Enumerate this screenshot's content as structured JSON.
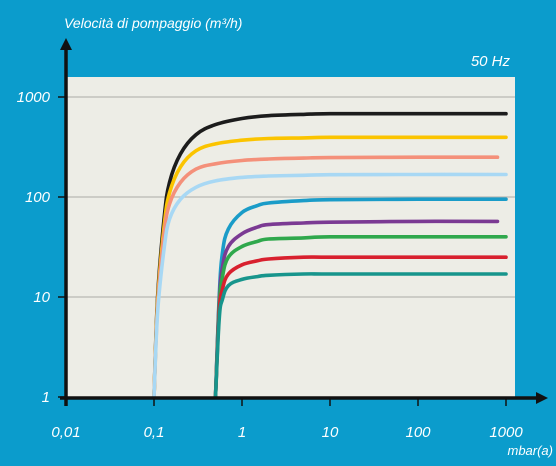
{
  "chart_data": {
    "type": "line",
    "title": "50 Hz",
    "ylabel": "Velocità di pompaggio (m³/h)",
    "xlabel": "mbar(a)",
    "x_scale": "log",
    "y_scale": "log",
    "xlim": [
      0.004,
      1000
    ],
    "ylim": [
      1,
      1500
    ],
    "x_ticks": [
      "0,01",
      "0,1",
      "1",
      "10",
      "100",
      "1000"
    ],
    "x_tick_values": [
      0.01,
      0.1,
      1,
      10,
      100,
      1000
    ],
    "y_ticks": [
      "1",
      "10",
      "100",
      "1000"
    ],
    "y_tick_values": [
      1,
      10,
      100,
      1000
    ],
    "grid": "horizontal",
    "plot_background": "#edede6",
    "series": [
      {
        "color": "#1c1c1c",
        "x": [
          0.1,
          0.11,
          0.13,
          0.15,
          0.2,
          0.3,
          0.5,
          1,
          2,
          5,
          10,
          100,
          1000
        ],
        "y": [
          1,
          10,
          60,
          140,
          270,
          420,
          530,
          610,
          650,
          670,
          680,
          680,
          680
        ]
      },
      {
        "color": "#fbc400",
        "x": [
          0.1,
          0.11,
          0.13,
          0.15,
          0.2,
          0.3,
          0.5,
          1,
          2,
          5,
          10,
          100,
          1000
        ],
        "y": [
          1,
          9,
          50,
          110,
          200,
          290,
          340,
          370,
          385,
          390,
          395,
          395,
          395
        ]
      },
      {
        "color": "#f4907a",
        "x": [
          0.1,
          0.11,
          0.13,
          0.15,
          0.2,
          0.3,
          0.5,
          1,
          2,
          5,
          10,
          100,
          800
        ],
        "y": [
          1,
          8,
          42,
          85,
          140,
          190,
          215,
          232,
          240,
          245,
          248,
          250,
          250
        ]
      },
      {
        "color": "#a8d8f4",
        "x": [
          0.1,
          0.11,
          0.13,
          0.15,
          0.2,
          0.3,
          0.5,
          1,
          2,
          5,
          10,
          100,
          1000
        ],
        "y": [
          1,
          7,
          30,
          60,
          95,
          125,
          145,
          157,
          162,
          165,
          167,
          168,
          168
        ]
      },
      {
        "color": "#1a9cc8",
        "x": [
          0.5,
          0.55,
          0.6,
          0.7,
          1,
          1.5,
          2,
          5,
          10,
          100,
          1000
        ],
        "y": [
          1,
          10,
          28,
          48,
          70,
          82,
          87,
          92,
          94,
          95,
          95
        ]
      },
      {
        "color": "#7b3a93",
        "x": [
          0.5,
          0.55,
          0.6,
          0.7,
          1,
          1.5,
          2,
          5,
          10,
          100,
          800
        ],
        "y": [
          1,
          9,
          20,
          32,
          43,
          50,
          53,
          55,
          56,
          57,
          57
        ]
      },
      {
        "color": "#2fa84c",
        "x": [
          0.5,
          0.55,
          0.6,
          0.7,
          1,
          1.5,
          2,
          5,
          10,
          100,
          1000
        ],
        "y": [
          1,
          8,
          16,
          25,
          32,
          36,
          38,
          39,
          40,
          40,
          40
        ]
      },
      {
        "color": "#d8202e",
        "x": [
          0.5,
          0.55,
          0.6,
          0.7,
          1,
          1.5,
          2,
          5,
          10,
          100,
          1000
        ],
        "y": [
          1,
          7,
          12,
          17,
          21,
          23,
          24,
          25,
          25,
          25,
          25
        ]
      },
      {
        "color": "#17958c",
        "x": [
          0.5,
          0.55,
          0.6,
          0.7,
          1,
          1.5,
          2,
          5,
          10,
          100,
          1000
        ],
        "y": [
          1,
          6,
          9.5,
          13,
          15,
          16,
          16.5,
          17,
          17,
          17,
          17
        ]
      }
    ]
  }
}
